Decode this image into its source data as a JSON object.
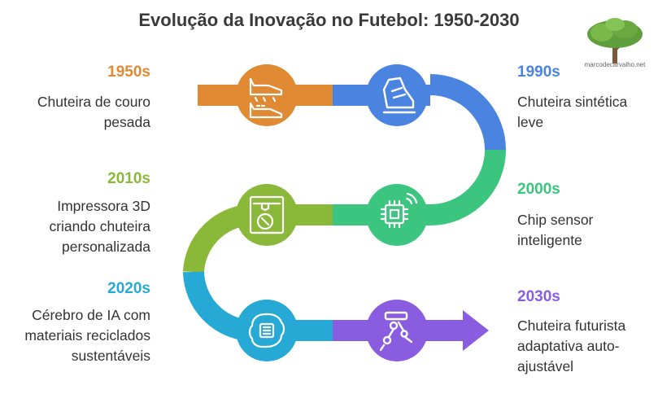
{
  "title": "Evolução da Inovação no Futebol: 1950-2030",
  "logo_text": "marcodecarvalho.net",
  "milestones": [
    {
      "decade": "1950s",
      "text": "Chuteira de couro pesada",
      "color": "#e08a34",
      "icon": "leather-boots-icon"
    },
    {
      "decade": "1990s",
      "text": "Chuteira sintética leve",
      "color": "#4a84e0",
      "icon": "synthetic-shoe-icon"
    },
    {
      "decade": "2000s",
      "text": "Chip sensor inteligente",
      "color": "#3cc57f",
      "icon": "sensor-chip-icon"
    },
    {
      "decade": "2010s",
      "text": "Impressora 3D criando chuteira personalizada",
      "color": "#8ab93a",
      "icon": "3d-printer-icon"
    },
    {
      "decade": "2020s",
      "text": "Cérebro de IA com materiais reciclados sustentáveis",
      "color": "#27a9d6",
      "icon": "ai-brain-icon"
    },
    {
      "decade": "2030s",
      "text": "Chuteira futurista adaptativa auto-ajustável",
      "color": "#8a5de0",
      "icon": "robot-leg-icon"
    }
  ]
}
